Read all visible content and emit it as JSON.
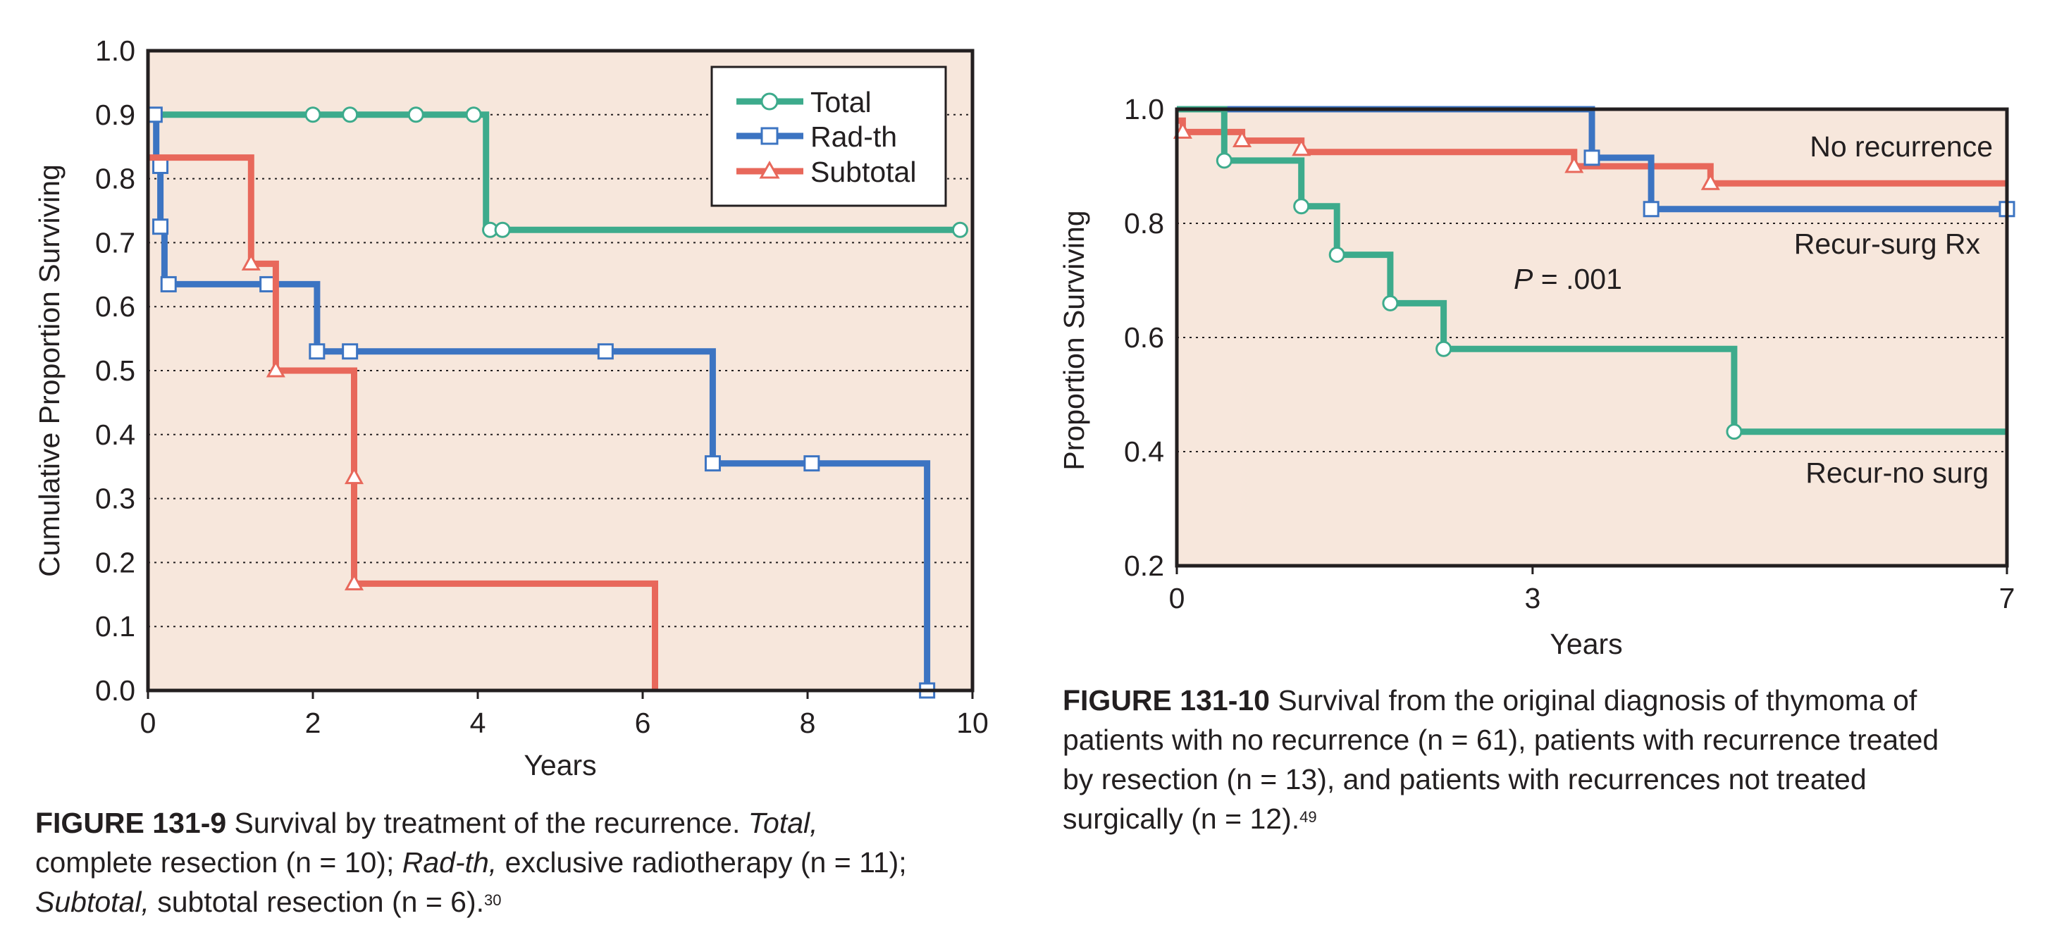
{
  "chart_data": [
    {
      "type": "line",
      "step": true,
      "xlabel": "Years",
      "ylabel": "Cumulative Proportion Surviving",
      "xlim": [
        0,
        10
      ],
      "ylim": [
        0.0,
        1.0
      ],
      "xticks": [
        "0",
        "2",
        "4",
        "6",
        "8",
        "10"
      ],
      "yticks": [
        "0.0",
        "0.1",
        "0.2",
        "0.3",
        "0.4",
        "0.5",
        "0.6",
        "0.7",
        "0.8",
        "0.9",
        "1.0"
      ],
      "grid": "horizontal dotted",
      "background": "#f7e7dc",
      "legend_position": "top-right",
      "series": [
        {
          "name": "Total",
          "color": "#3dab8c",
          "marker": "circle",
          "steps": [
            [
              0,
              0.9
            ],
            [
              4.1,
              0.9
            ],
            [
              4.1,
              0.72
            ],
            [
              9.85,
              0.72
            ]
          ],
          "markers": [
            [
              2.0,
              0.9
            ],
            [
              2.45,
              0.9
            ],
            [
              3.25,
              0.9
            ],
            [
              3.95,
              0.9
            ],
            [
              4.15,
              0.72
            ],
            [
              4.3,
              0.72
            ],
            [
              9.85,
              0.72
            ]
          ]
        },
        {
          "name": "Rad-th",
          "color": "#3c74c2",
          "marker": "square",
          "steps": [
            [
              0,
              0.9
            ],
            [
              0.1,
              0.9
            ],
            [
              0.1,
              0.82
            ],
            [
              0.15,
              0.82
            ],
            [
              0.15,
              0.73
            ],
            [
              0.2,
              0.73
            ],
            [
              0.2,
              0.635
            ],
            [
              2.05,
              0.635
            ],
            [
              2.05,
              0.53
            ],
            [
              6.85,
              0.53
            ],
            [
              6.85,
              0.355
            ],
            [
              9.45,
              0.355
            ],
            [
              9.45,
              0.0
            ]
          ],
          "markers": [
            [
              0.08,
              0.9
            ],
            [
              0.15,
              0.82
            ],
            [
              0.15,
              0.725
            ],
            [
              0.25,
              0.635
            ],
            [
              1.45,
              0.635
            ],
            [
              2.05,
              0.53
            ],
            [
              2.45,
              0.53
            ],
            [
              5.55,
              0.53
            ],
            [
              6.85,
              0.355
            ],
            [
              8.05,
              0.355
            ],
            [
              9.45,
              0.0
            ]
          ]
        },
        {
          "name": "Subtotal",
          "color": "#e8685b",
          "marker": "triangle",
          "steps": [
            [
              0,
              0.833
            ],
            [
              1.25,
              0.833
            ],
            [
              1.25,
              0.667
            ],
            [
              1.55,
              0.667
            ],
            [
              1.55,
              0.5
            ],
            [
              2.5,
              0.5
            ],
            [
              2.5,
              0.167
            ],
            [
              6.15,
              0.167
            ],
            [
              6.15,
              0.0
            ]
          ],
          "markers": [
            [
              1.25,
              0.667
            ],
            [
              1.55,
              0.5
            ],
            [
              2.5,
              0.333
            ],
            [
              2.5,
              0.167
            ]
          ]
        }
      ],
      "caption": {
        "label": "FIGURE 131-9",
        "text_1": " Survival by treatment of the recurrence. ",
        "em_total": "Total,",
        "text_2": "complete resection (n = 10); ",
        "em_radth": "Rad-th,",
        "text_3": " exclusive radiotherapy (n = 11);",
        "em_subtotal": "Subtotal,",
        "text_4": " subtotal resection (n = 6).",
        "ref": "30"
      }
    },
    {
      "type": "line",
      "step": true,
      "xlabel": "Years",
      "ylabel": "Proportion Surviving",
      "xlim": [
        0,
        7
      ],
      "ylim": [
        0.2,
        1.0
      ],
      "xticks": [
        "0",
        "3",
        "7"
      ],
      "yticks": [
        "0.2",
        "0.4",
        "0.6",
        "0.8",
        "1.0"
      ],
      "grid": "horizontal dotted",
      "background": "#f7e7dc",
      "annotation": {
        "p_label": "P",
        "p_value": " = .001"
      },
      "series": [
        {
          "name": "No recurrence",
          "color": "#e8685b",
          "marker": "triangle",
          "steps": [
            [
              0,
              0.98
            ],
            [
              0.05,
              0.98
            ],
            [
              0.05,
              0.96
            ],
            [
              0.55,
              0.96
            ],
            [
              0.55,
              0.945
            ],
            [
              1.05,
              0.945
            ],
            [
              1.05,
              0.925
            ],
            [
              3.35,
              0.925
            ],
            [
              3.35,
              0.9
            ],
            [
              4.5,
              0.9
            ],
            [
              4.5,
              0.87
            ],
            [
              7.0,
              0.87
            ]
          ],
          "markers": [
            [
              0.05,
              0.96
            ],
            [
              0.55,
              0.945
            ],
            [
              1.05,
              0.93
            ],
            [
              3.35,
              0.9
            ],
            [
              4.5,
              0.87
            ]
          ]
        },
        {
          "name": "Recur-surg Rx",
          "color": "#3c74c2",
          "marker": "square",
          "steps": [
            [
              0,
              1.0
            ],
            [
              3.5,
              1.0
            ],
            [
              3.5,
              0.915
            ],
            [
              4.0,
              0.915
            ],
            [
              4.0,
              0.825
            ],
            [
              7.0,
              0.825
            ]
          ],
          "markers": [
            [
              3.5,
              0.915
            ],
            [
              4.0,
              0.825
            ],
            [
              7.0,
              0.825
            ]
          ]
        },
        {
          "name": "Recur-no surg",
          "color": "#3dab8c",
          "marker": "circle",
          "steps": [
            [
              0,
              1.0
            ],
            [
              0.4,
              1.0
            ],
            [
              0.4,
              0.91
            ],
            [
              1.05,
              0.91
            ],
            [
              1.05,
              0.83
            ],
            [
              1.35,
              0.83
            ],
            [
              1.35,
              0.745
            ],
            [
              1.8,
              0.745
            ],
            [
              1.8,
              0.66
            ],
            [
              2.25,
              0.66
            ],
            [
              2.25,
              0.58
            ],
            [
              4.7,
              0.58
            ],
            [
              4.7,
              0.435
            ],
            [
              7.0,
              0.435
            ]
          ],
          "markers": [
            [
              0.4,
              0.91
            ],
            [
              1.05,
              0.83
            ],
            [
              1.35,
              0.745
            ],
            [
              1.8,
              0.66
            ],
            [
              2.25,
              0.58
            ],
            [
              4.7,
              0.435
            ]
          ]
        }
      ],
      "caption": {
        "label": "FIGURE 131-10",
        "line_1": " Survival from the original diagnosis of thymoma of",
        "line_2": "patients with no recurrence (n = 61), patients with recurrence treated",
        "line_3": "by resection (n = 13), and patients with recurrences not treated",
        "line_4": "surgically (n = 12).",
        "ref": "49"
      }
    }
  ]
}
